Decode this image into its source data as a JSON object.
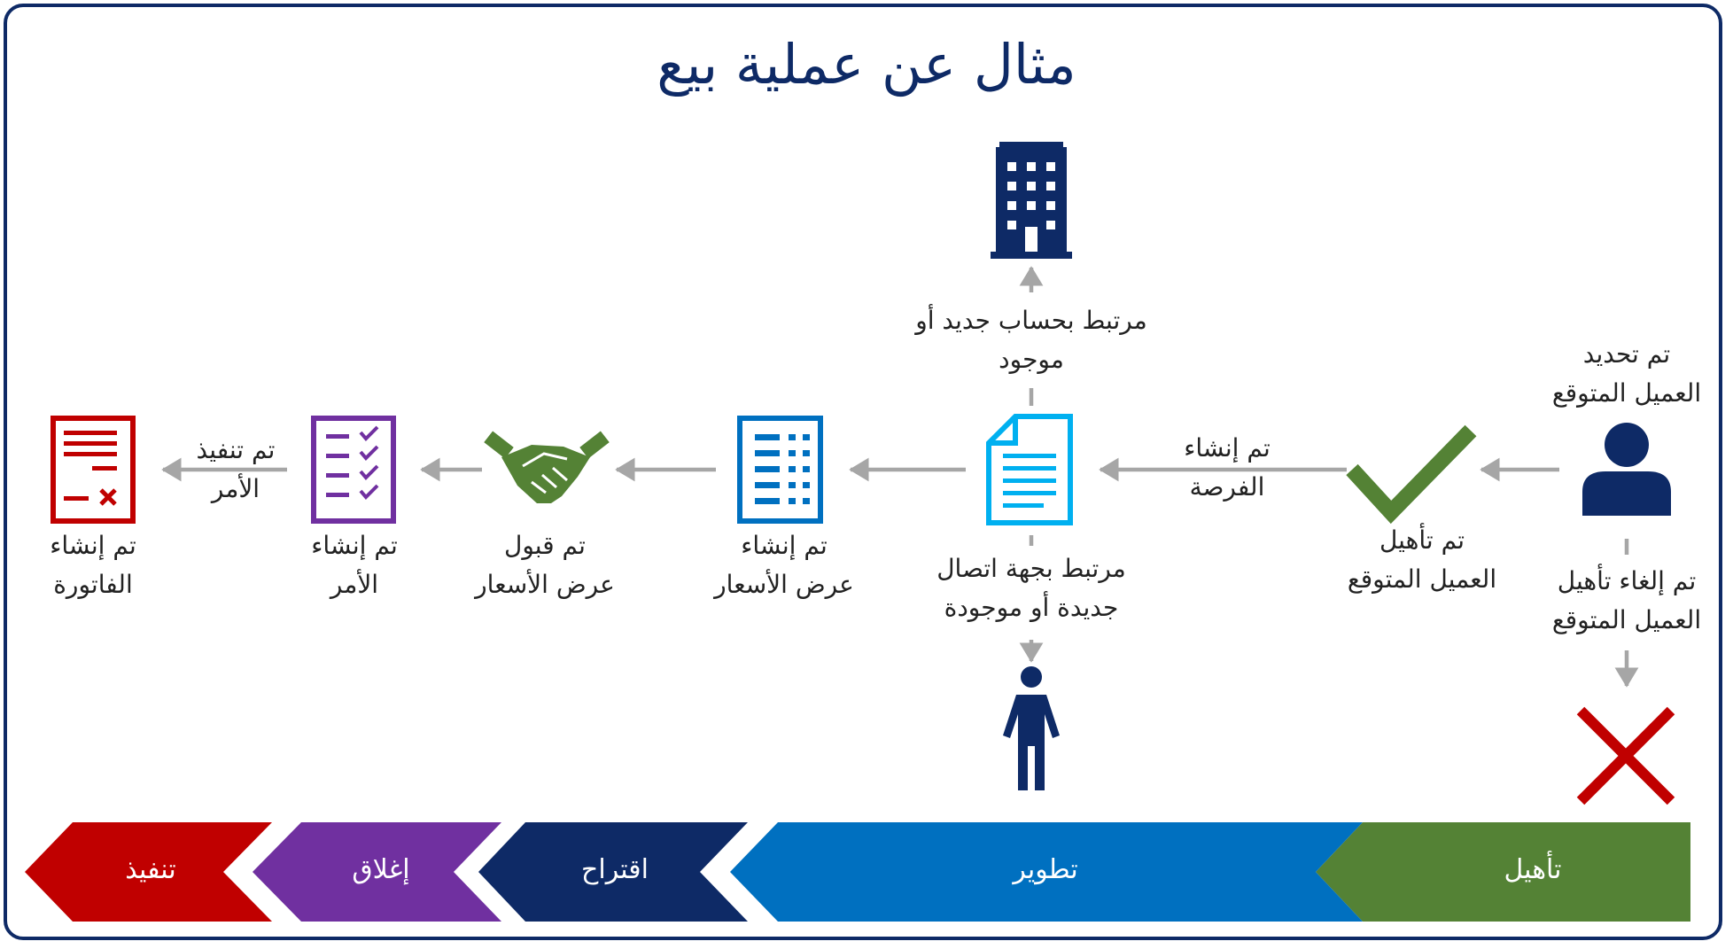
{
  "title": "مثال عن عملية بيع",
  "labels": {
    "prospect_identified": "تم تحديد\nالعميل المتوقع",
    "prospect_qualified": "تم تأهيل\nالعميل المتوقع",
    "prospect_disqualified": "تم إلغاء تأهيل\nالعميل المتوقع",
    "opportunity_created": "تم إنشاء\nالفرصة",
    "linked_account": "مرتبط بحساب جديد أو\nموجود",
    "linked_contact": "مرتبط بجهة اتصال\nجديدة أو موجودة",
    "quote_created": "تم إنشاء\nعرض الأسعار",
    "quote_accepted": "تم قبول\nعرض الأسعار",
    "order_created": "تم إنشاء\nالأمر",
    "order_fulfilled": "تم تنفيذ\nالأمر",
    "invoice_created": "تم إنشاء\nالفاتورة"
  },
  "stages": [
    {
      "label": "تأهيل",
      "color": "#548235"
    },
    {
      "label": "تطوير",
      "color": "#0070c0"
    },
    {
      "label": "اقتراح",
      "color": "#0e2a66"
    },
    {
      "label": "إغلاق",
      "color": "#7030a0"
    },
    {
      "label": "تنفيذ",
      "color": "#c00000"
    }
  ],
  "colors": {
    "navy": "#0e2a66",
    "green": "#548235",
    "blue": "#0070c0",
    "light_blue": "#00b0f0",
    "purple": "#7030a0",
    "red": "#c00000",
    "arrow_gray": "#a6a6a6"
  }
}
